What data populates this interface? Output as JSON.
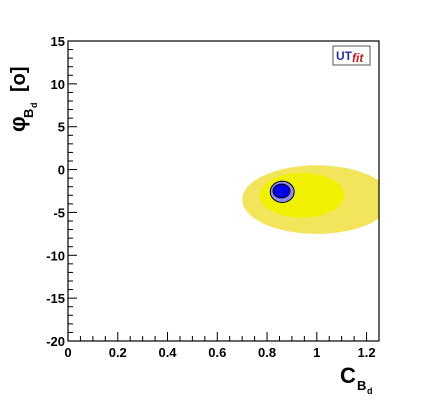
{
  "chart_data": {
    "type": "contour",
    "xlabel": {
      "main": "C",
      "sub": "B",
      "subsub": "d"
    },
    "ylabel": {
      "main": "φ",
      "sub": "B",
      "subsub": "d",
      "unit": "[o]"
    },
    "xlim": [
      0,
      1.25
    ],
    "ylim": [
      -20,
      15
    ],
    "x_ticks": [
      0,
      0.2,
      0.4,
      0.6,
      0.8,
      1,
      1.2
    ],
    "x_tick_labels": [
      "0",
      "0.2",
      "0.4",
      "0.6",
      "0.8",
      "1",
      "1.2"
    ],
    "y_ticks": [
      -20,
      -15,
      -10,
      -5,
      0,
      5,
      10,
      15
    ],
    "y_tick_labels": [
      "-20",
      "-15",
      "-10",
      "-5",
      "0",
      "5",
      "10",
      "15"
    ],
    "logo": {
      "part1": "UT",
      "part2": "fit"
    },
    "regions": [
      {
        "name": "",
        "color": "#f3e55b",
        "cx": 1.0,
        "cy": -3.5,
        "rx": 0.3,
        "ry": 4.0
      },
      {
        "name": "",
        "color": "#f0f000",
        "cx": 0.94,
        "cy": -3.0,
        "rx": 0.17,
        "ry": 2.6
      },
      {
        "name": "",
        "color": "#8c8cf0",
        "cx": 0.861,
        "cy": -2.6,
        "rx": 0.048,
        "ry": 1.25
      },
      {
        "name": "",
        "color": "#0000ee",
        "cx": 0.858,
        "cy": -2.5,
        "rx": 0.034,
        "ry": 0.8
      }
    ]
  }
}
